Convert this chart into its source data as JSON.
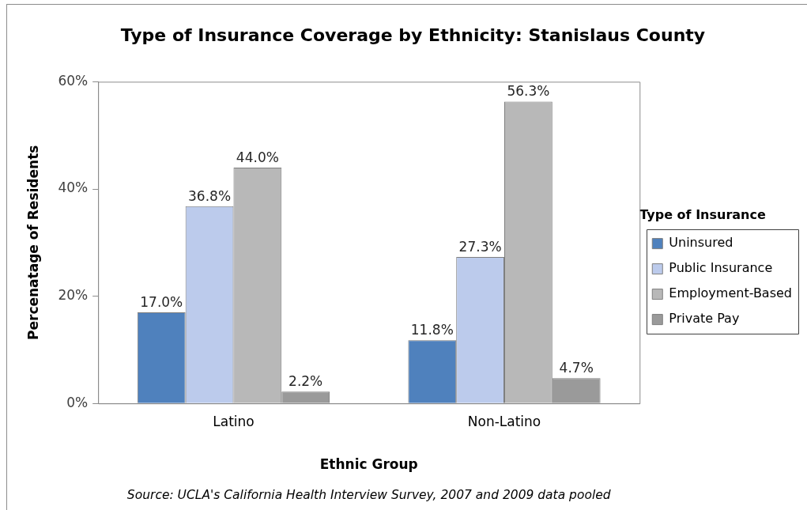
{
  "chart_data": {
    "type": "bar",
    "title": "Type of Insurance Coverage by Ethnicity: Stanislaus County",
    "xlabel": "Ethnic Group",
    "ylabel": "Percenatage of Residents",
    "legend_title": "Type of Insurance",
    "legend": "right",
    "grid": false,
    "categories": [
      "Latino",
      "Non-Latino"
    ],
    "series": [
      {
        "name": "Uninsured",
        "color": "#4f81bd",
        "values": [
          17.0,
          11.8
        ],
        "value_labels": [
          "17.0%",
          "11.8%"
        ]
      },
      {
        "name": "Public Insurance",
        "color": "#bccbec",
        "values": [
          36.8,
          27.3
        ],
        "value_labels": [
          "36.8%",
          "27.3%"
        ]
      },
      {
        "name": "Employment-Based",
        "color": "#b8b8b8",
        "values": [
          44.0,
          56.3
        ],
        "value_labels": [
          "44.0%",
          "56.3%"
        ]
      },
      {
        "name": "Private Pay",
        "color": "#9a9a9a",
        "values": [
          2.2,
          4.7
        ],
        "value_labels": [
          "2.2%",
          "4.7%"
        ]
      }
    ],
    "ylim": [
      0,
      60
    ],
    "yticks": [
      {
        "value": 0,
        "label": "0%"
      },
      {
        "value": 20,
        "label": "20%"
      },
      {
        "value": 40,
        "label": "40%"
      },
      {
        "value": 60,
        "label": "60%"
      }
    ],
    "annotations": [
      "Source: UCLA's California Health Interview Survey, 2007 and 2009 data pooled"
    ]
  }
}
